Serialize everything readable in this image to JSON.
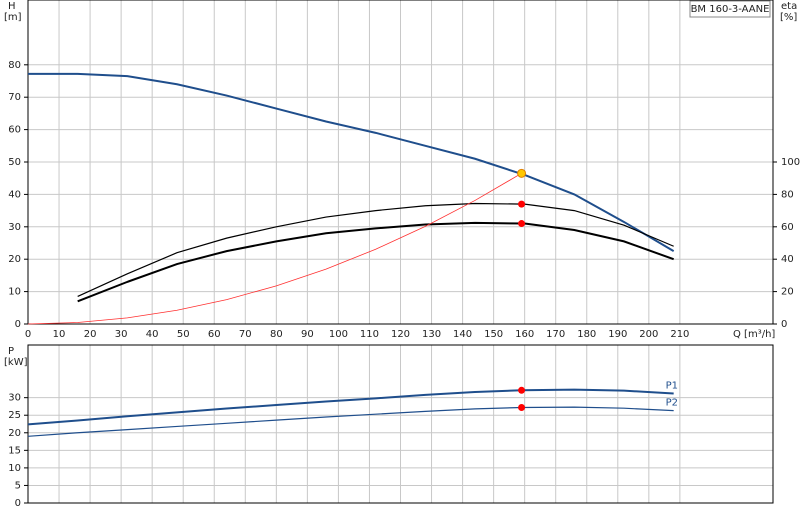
{
  "chart_data": [
    {
      "type": "line",
      "label": "BM 160-3-AANE",
      "y_label": "H",
      "y_unit": "[m]",
      "y2_label": "eta",
      "y2_unit": "[%]",
      "x_label": "Q [m³/h]",
      "xlim": [
        0,
        240
      ],
      "xticks": [
        0,
        10,
        20,
        30,
        40,
        50,
        60,
        70,
        80,
        90,
        100,
        110,
        120,
        130,
        140,
        150,
        160,
        170,
        180,
        190,
        200,
        210
      ],
      "ylim": [
        0,
        100
      ],
      "yticks": [
        0,
        10,
        20,
        30,
        40,
        50,
        60,
        70,
        80
      ],
      "y2lim": [
        0,
        200
      ],
      "y2ticks": [
        0,
        20,
        40,
        60,
        80,
        100
      ],
      "grid": true,
      "show_xtick_labels": true,
      "series": [
        {
          "style": "line",
          "color": "#1f4e8c",
          "width": 2,
          "axis": "y",
          "x": [
            0,
            16,
            32,
            48,
            64,
            80,
            96,
            112,
            128,
            144,
            160,
            176,
            192,
            208
          ],
          "values": [
            77.2,
            77.2,
            76.5,
            74,
            70.5,
            66.5,
            62.5,
            59,
            55,
            51,
            46,
            40,
            31.5,
            22.5
          ]
        },
        {
          "style": "line",
          "color": "#000000",
          "width": 1.2,
          "axis": "y2",
          "x": [
            16,
            32,
            48,
            64,
            80,
            96,
            112,
            128,
            144,
            160,
            176,
            192,
            208
          ],
          "values": [
            17,
            31,
            44,
            53,
            60,
            66,
            70,
            73,
            74.4,
            74,
            70,
            61,
            48
          ]
        },
        {
          "style": "line",
          "color": "#000000",
          "width": 2,
          "axis": "y2",
          "x": [
            16,
            32,
            48,
            64,
            80,
            96,
            112,
            128,
            144,
            160,
            176,
            192,
            208
          ],
          "values": [
            14,
            26,
            37,
            45,
            51,
            56,
            59,
            61.4,
            62.4,
            62,
            58,
            51,
            40
          ]
        },
        {
          "style": "line",
          "color": "#ff3030",
          "width": 0.8,
          "axis": "y",
          "x": [
            0,
            16,
            32,
            48,
            64,
            80,
            96,
            112,
            128,
            144,
            159
          ],
          "values": [
            0,
            0.47,
            1.88,
            4.24,
            7.53,
            11.77,
            16.95,
            23.07,
            30.14,
            38.14,
            46.5
          ]
        },
        {
          "style": "point",
          "color": "#ffc800",
          "axis": "y",
          "x": [
            159
          ],
          "values": [
            46.5
          ]
        },
        {
          "style": "point",
          "color": "#ff0000",
          "axis": "y2",
          "x": [
            159
          ],
          "values": [
            74
          ]
        },
        {
          "style": "point",
          "color": "#ff0000",
          "axis": "y2",
          "x": [
            159
          ],
          "values": [
            62
          ]
        }
      ]
    },
    {
      "type": "line",
      "y_label": "P",
      "y_unit": "[kW]",
      "xlim": [
        0,
        240
      ],
      "xticks": [
        0,
        10,
        20,
        30,
        40,
        50,
        60,
        70,
        80,
        90,
        100,
        110,
        120,
        130,
        140,
        150,
        160,
        170,
        180,
        190,
        200,
        210
      ],
      "ylim": [
        0,
        45
      ],
      "yticks": [
        0,
        5,
        10,
        15,
        20,
        25,
        30
      ],
      "grid": true,
      "show_xtick_labels": false,
      "series": [
        {
          "name": "P1",
          "style": "line",
          "color": "#1f4e8c",
          "width": 2,
          "axis": "y",
          "x": [
            0,
            16,
            32,
            48,
            64,
            80,
            96,
            112,
            128,
            144,
            159,
            176,
            192,
            208
          ],
          "values": [
            22.4,
            23.5,
            24.7,
            25.8,
            26.9,
            27.9,
            28.9,
            29.8,
            30.8,
            31.6,
            32.1,
            32.3,
            32,
            31.2
          ]
        },
        {
          "name": "P2",
          "style": "line",
          "color": "#1f4e8c",
          "width": 1.2,
          "axis": "y",
          "x": [
            0,
            16,
            32,
            48,
            64,
            80,
            96,
            112,
            128,
            144,
            159,
            176,
            192,
            208
          ],
          "values": [
            19,
            20,
            20.9,
            21.8,
            22.7,
            23.6,
            24.5,
            25.3,
            26.1,
            26.8,
            27.2,
            27.3,
            27,
            26.3
          ]
        },
        {
          "style": "point",
          "color": "#ff0000",
          "axis": "y",
          "x": [
            159
          ],
          "values": [
            32.1
          ]
        },
        {
          "style": "point",
          "color": "#ff0000",
          "axis": "y",
          "x": [
            159
          ],
          "values": [
            27.2
          ]
        }
      ]
    }
  ]
}
